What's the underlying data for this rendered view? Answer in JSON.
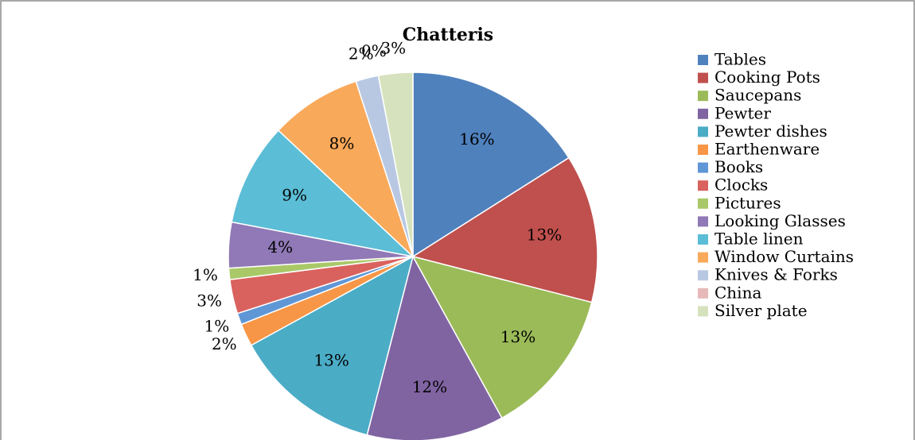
{
  "chart_data": {
    "type": "pie",
    "title": "Chatteris",
    "categories": [
      "Tables",
      "Cooking Pots",
      "Saucepans",
      "Pewter",
      "Pewter dishes",
      "Earthenware",
      "Books",
      "Clocks",
      "Pictures",
      "Looking Glasses",
      "Table linen",
      "Window Curtains",
      "Knives & Forks",
      "China",
      "Silver plate"
    ],
    "values": [
      16,
      13,
      13,
      12,
      13,
      2,
      1,
      3,
      1,
      4,
      9,
      8,
      2,
      0,
      3
    ],
    "value_labels": [
      "16%",
      "13%",
      "13%",
      "12%",
      "13%",
      "2%",
      "1%",
      "3%",
      "1%",
      "4%",
      "9%",
      "8%",
      "2%",
      "0%",
      "3%"
    ],
    "colors": [
      "#4f81bd",
      "#c0504d",
      "#9bbb59",
      "#8064a2",
      "#4bacc6",
      "#f79646",
      "#5f97d6",
      "#d9625e",
      "#a9c868",
      "#9079b6",
      "#5bbdd6",
      "#f9a95a",
      "#b9c8e2",
      "#e6b9b8",
      "#d6e2bd"
    ],
    "legend": "right"
  }
}
